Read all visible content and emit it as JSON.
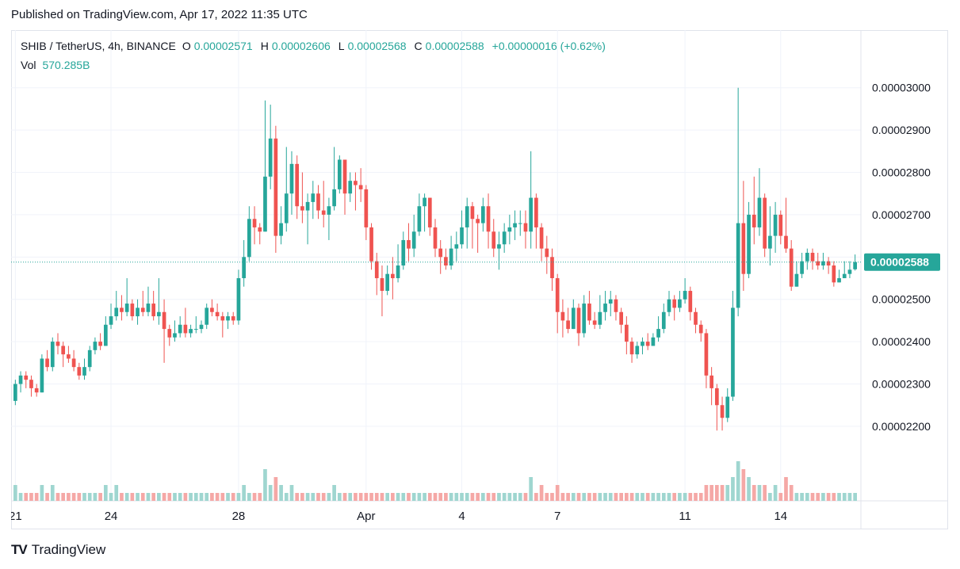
{
  "published": "Published on TradingView.com, Apr 17, 2022 11:35 UTC",
  "legend": {
    "symbol": "SHIB / TetherUS, 4h, BINANCE",
    "open_label": "O",
    "open": "0.00002571",
    "high_label": "H",
    "high": "0.00002606",
    "low_label": "L",
    "low": "0.00002568",
    "close_label": "C",
    "close": "0.00002588",
    "change": "+0.00000016 (+0.62%)"
  },
  "volume": {
    "label": "Vol",
    "value": "570.285B"
  },
  "brand": {
    "name": "TradingView",
    "logo": "TV"
  },
  "colors": {
    "up": "#26a69a",
    "down": "#ef5350",
    "up_vol": "#9fd6d0",
    "down_vol": "#f5a8a6",
    "grid": "#f0f3fa",
    "last": "#26a69a"
  },
  "chart_data": {
    "type": "candlestick",
    "symbol": "SHIB / TetherUS",
    "interval": "4h",
    "exchange": "BINANCE",
    "y_ticks": [
      "0.00002200",
      "0.00002300",
      "0.00002400",
      "0.00002500",
      "0.00002600",
      "0.00002700",
      "0.00002800",
      "0.00002900",
      "0.00003000"
    ],
    "y_tick_values": [
      2.2,
      2.3,
      2.4,
      2.5,
      2.6,
      2.7,
      2.8,
      2.9,
      3.0
    ],
    "y_unit": "1e-5 USDT",
    "ylim": [
      2.11,
      3.05
    ],
    "last_price_label": "0.00002588",
    "last_price": 2.588,
    "x_ticks": [
      {
        "label": "21",
        "index": 0
      },
      {
        "label": "24",
        "index": 18
      },
      {
        "label": "28",
        "index": 42
      },
      {
        "label": "Apr",
        "index": 66
      },
      {
        "label": "4",
        "index": 84
      },
      {
        "label": "7",
        "index": 102
      },
      {
        "label": "11",
        "index": 126
      },
      {
        "label": "14",
        "index": 144
      }
    ],
    "candles": [
      [
        2.26,
        2.3,
        2.31,
        2.25,
        2
      ],
      [
        2.3,
        2.32,
        2.33,
        2.28,
        1
      ],
      [
        2.32,
        2.31,
        2.33,
        2.29,
        1
      ],
      [
        2.31,
        2.29,
        2.32,
        2.27,
        1
      ],
      [
        2.29,
        2.28,
        2.3,
        2.27,
        1
      ],
      [
        2.28,
        2.36,
        2.37,
        2.28,
        2
      ],
      [
        2.36,
        2.34,
        2.38,
        2.33,
        1
      ],
      [
        2.34,
        2.4,
        2.41,
        2.33,
        2
      ],
      [
        2.4,
        2.39,
        2.42,
        2.37,
        1
      ],
      [
        2.39,
        2.37,
        2.4,
        2.34,
        1
      ],
      [
        2.37,
        2.36,
        2.39,
        2.35,
        1
      ],
      [
        2.36,
        2.34,
        2.38,
        2.33,
        1
      ],
      [
        2.34,
        2.32,
        2.35,
        2.31,
        1
      ],
      [
        2.32,
        2.34,
        2.36,
        2.31,
        1
      ],
      [
        2.34,
        2.38,
        2.39,
        2.33,
        1
      ],
      [
        2.38,
        2.4,
        2.41,
        2.37,
        1
      ],
      [
        2.4,
        2.39,
        2.42,
        2.38,
        1
      ],
      [
        2.39,
        2.44,
        2.46,
        2.39,
        2
      ],
      [
        2.44,
        2.46,
        2.49,
        2.43,
        1
      ],
      [
        2.46,
        2.48,
        2.52,
        2.45,
        2
      ],
      [
        2.48,
        2.47,
        2.51,
        2.45,
        1
      ],
      [
        2.47,
        2.49,
        2.55,
        2.46,
        1
      ],
      [
        2.49,
        2.46,
        2.5,
        2.45,
        1
      ],
      [
        2.46,
        2.48,
        2.5,
        2.44,
        1
      ],
      [
        2.48,
        2.47,
        2.52,
        2.46,
        1
      ],
      [
        2.47,
        2.49,
        2.53,
        2.46,
        1
      ],
      [
        2.49,
        2.46,
        2.52,
        2.45,
        1
      ],
      [
        2.46,
        2.47,
        2.55,
        2.44,
        1
      ],
      [
        2.47,
        2.43,
        2.5,
        2.35,
        1
      ],
      [
        2.43,
        2.41,
        2.44,
        2.39,
        1
      ],
      [
        2.41,
        2.42,
        2.45,
        2.4,
        1
      ],
      [
        2.42,
        2.44,
        2.46,
        2.41,
        1
      ],
      [
        2.44,
        2.42,
        2.48,
        2.41,
        1
      ],
      [
        2.42,
        2.43,
        2.44,
        2.41,
        1
      ],
      [
        2.43,
        2.43,
        2.46,
        2.42,
        1
      ],
      [
        2.43,
        2.44,
        2.45,
        2.42,
        1
      ],
      [
        2.44,
        2.48,
        2.49,
        2.43,
        1
      ],
      [
        2.48,
        2.47,
        2.5,
        2.46,
        1
      ],
      [
        2.47,
        2.46,
        2.49,
        2.45,
        1
      ],
      [
        2.46,
        2.45,
        2.47,
        2.41,
        1
      ],
      [
        2.45,
        2.46,
        2.47,
        2.43,
        1
      ],
      [
        2.46,
        2.45,
        2.47,
        2.44,
        1
      ],
      [
        2.45,
        2.55,
        2.57,
        2.44,
        1
      ],
      [
        2.55,
        2.6,
        2.64,
        2.53,
        2
      ],
      [
        2.6,
        2.69,
        2.72,
        2.59,
        1
      ],
      [
        2.69,
        2.67,
        2.72,
        2.63,
        1
      ],
      [
        2.67,
        2.66,
        2.68,
        2.63,
        1
      ],
      [
        2.66,
        2.79,
        2.97,
        2.66,
        4
      ],
      [
        2.79,
        2.88,
        2.96,
        2.76,
        2
      ],
      [
        2.88,
        2.65,
        2.91,
        2.61,
        3
      ],
      [
        2.65,
        2.68,
        2.72,
        2.63,
        2
      ],
      [
        2.68,
        2.75,
        2.86,
        2.66,
        1
      ],
      [
        2.75,
        2.82,
        2.85,
        2.7,
        2
      ],
      [
        2.82,
        2.72,
        2.84,
        2.69,
        1
      ],
      [
        2.72,
        2.71,
        2.8,
        2.68,
        1
      ],
      [
        2.71,
        2.73,
        2.75,
        2.63,
        1
      ],
      [
        2.73,
        2.75,
        2.78,
        2.69,
        1
      ],
      [
        2.75,
        2.71,
        2.77,
        2.69,
        1
      ],
      [
        2.71,
        2.7,
        2.78,
        2.67,
        1
      ],
      [
        2.7,
        2.72,
        2.74,
        2.64,
        1
      ],
      [
        2.72,
        2.76,
        2.86,
        2.71,
        2
      ],
      [
        2.76,
        2.83,
        2.84,
        2.75,
        1
      ],
      [
        2.83,
        2.75,
        2.83,
        2.7,
        1
      ],
      [
        2.75,
        2.78,
        2.8,
        2.73,
        1
      ],
      [
        2.78,
        2.77,
        2.8,
        2.71,
        1
      ],
      [
        2.77,
        2.76,
        2.81,
        2.73,
        1
      ],
      [
        2.76,
        2.67,
        2.77,
        2.64,
        1
      ],
      [
        2.67,
        2.59,
        2.68,
        2.57,
        1
      ],
      [
        2.59,
        2.55,
        2.61,
        2.51,
        1
      ],
      [
        2.55,
        2.52,
        2.58,
        2.46,
        1
      ],
      [
        2.52,
        2.56,
        2.58,
        2.51,
        1
      ],
      [
        2.56,
        2.55,
        2.6,
        2.5,
        1
      ],
      [
        2.55,
        2.58,
        2.63,
        2.54,
        1
      ],
      [
        2.58,
        2.64,
        2.66,
        2.57,
        1
      ],
      [
        2.64,
        2.62,
        2.68,
        2.59,
        1
      ],
      [
        2.62,
        2.66,
        2.7,
        2.6,
        1
      ],
      [
        2.66,
        2.72,
        2.75,
        2.65,
        1
      ],
      [
        2.72,
        2.74,
        2.75,
        2.66,
        1
      ],
      [
        2.74,
        2.67,
        2.74,
        2.65,
        1
      ],
      [
        2.67,
        2.62,
        2.69,
        2.6,
        1
      ],
      [
        2.62,
        2.6,
        2.64,
        2.56,
        1
      ],
      [
        2.6,
        2.58,
        2.62,
        2.57,
        1
      ],
      [
        2.58,
        2.62,
        2.65,
        2.57,
        1
      ],
      [
        2.62,
        2.63,
        2.66,
        2.59,
        1
      ],
      [
        2.63,
        2.67,
        2.71,
        2.62,
        1
      ],
      [
        2.67,
        2.72,
        2.74,
        2.62,
        1
      ],
      [
        2.72,
        2.69,
        2.73,
        2.62,
        1
      ],
      [
        2.69,
        2.68,
        2.7,
        2.61,
        1
      ],
      [
        2.68,
        2.72,
        2.74,
        2.66,
        1
      ],
      [
        2.72,
        2.66,
        2.75,
        2.62,
        1
      ],
      [
        2.66,
        2.62,
        2.69,
        2.6,
        1
      ],
      [
        2.62,
        2.63,
        2.66,
        2.57,
        1
      ],
      [
        2.63,
        2.66,
        2.68,
        2.61,
        1
      ],
      [
        2.66,
        2.67,
        2.7,
        2.63,
        1
      ],
      [
        2.67,
        2.68,
        2.71,
        2.64,
        1
      ],
      [
        2.68,
        2.68,
        2.71,
        2.65,
        1
      ],
      [
        2.68,
        2.66,
        2.71,
        2.62,
        1
      ],
      [
        2.66,
        2.74,
        2.85,
        2.62,
        3
      ],
      [
        2.74,
        2.67,
        2.75,
        2.62,
        1
      ],
      [
        2.67,
        2.62,
        2.68,
        2.59,
        2
      ],
      [
        2.62,
        2.6,
        2.65,
        2.56,
        1
      ],
      [
        2.6,
        2.55,
        2.62,
        2.52,
        1
      ],
      [
        2.55,
        2.47,
        2.56,
        2.42,
        2
      ],
      [
        2.47,
        2.45,
        2.5,
        2.41,
        1
      ],
      [
        2.45,
        2.43,
        2.48,
        2.42,
        1
      ],
      [
        2.43,
        2.48,
        2.5,
        2.43,
        1
      ],
      [
        2.48,
        2.42,
        2.49,
        2.39,
        1
      ],
      [
        2.42,
        2.49,
        2.51,
        2.41,
        1
      ],
      [
        2.49,
        2.45,
        2.52,
        2.44,
        1
      ],
      [
        2.45,
        2.44,
        2.47,
        2.43,
        1
      ],
      [
        2.44,
        2.47,
        2.51,
        2.43,
        1
      ],
      [
        2.47,
        2.49,
        2.52,
        2.45,
        1
      ],
      [
        2.49,
        2.5,
        2.52,
        2.46,
        1
      ],
      [
        2.5,
        2.47,
        2.51,
        2.45,
        1
      ],
      [
        2.47,
        2.44,
        2.48,
        2.42,
        1
      ],
      [
        2.44,
        2.4,
        2.46,
        2.37,
        1
      ],
      [
        2.4,
        2.37,
        2.41,
        2.35,
        1
      ],
      [
        2.37,
        2.39,
        2.4,
        2.36,
        1
      ],
      [
        2.39,
        2.4,
        2.41,
        2.37,
        1
      ],
      [
        2.4,
        2.39,
        2.42,
        2.38,
        1
      ],
      [
        2.39,
        2.41,
        2.42,
        2.39,
        1
      ],
      [
        2.41,
        2.43,
        2.46,
        2.4,
        1
      ],
      [
        2.43,
        2.47,
        2.49,
        2.42,
        1
      ],
      [
        2.47,
        2.5,
        2.52,
        2.46,
        1
      ],
      [
        2.5,
        2.48,
        2.51,
        2.45,
        1
      ],
      [
        2.48,
        2.5,
        2.52,
        2.47,
        1
      ],
      [
        2.5,
        2.52,
        2.55,
        2.49,
        1
      ],
      [
        2.52,
        2.47,
        2.53,
        2.45,
        1
      ],
      [
        2.47,
        2.44,
        2.48,
        2.42,
        1
      ],
      [
        2.44,
        2.42,
        2.45,
        2.4,
        1
      ],
      [
        2.42,
        2.32,
        2.43,
        2.29,
        2
      ],
      [
        2.32,
        2.29,
        2.34,
        2.25,
        2
      ],
      [
        2.29,
        2.25,
        2.3,
        2.19,
        2
      ],
      [
        2.25,
        2.22,
        2.27,
        2.19,
        2
      ],
      [
        2.22,
        2.27,
        2.29,
        2.21,
        2
      ],
      [
        2.27,
        2.48,
        2.52,
        2.26,
        3
      ],
      [
        2.48,
        2.68,
        3.0,
        2.46,
        5
      ],
      [
        2.68,
        2.56,
        2.78,
        2.52,
        4
      ],
      [
        2.56,
        2.7,
        2.73,
        2.55,
        3
      ],
      [
        2.7,
        2.67,
        2.79,
        2.63,
        2
      ],
      [
        2.67,
        2.74,
        2.81,
        2.65,
        2
      ],
      [
        2.74,
        2.62,
        2.75,
        2.6,
        2
      ],
      [
        2.62,
        2.65,
        2.72,
        2.58,
        1
      ],
      [
        2.65,
        2.7,
        2.73,
        2.61,
        2
      ],
      [
        2.7,
        2.65,
        2.71,
        2.63,
        1
      ],
      [
        2.65,
        2.62,
        2.74,
        2.61,
        3
      ],
      [
        2.62,
        2.53,
        2.64,
        2.52,
        2
      ],
      [
        2.53,
        2.56,
        2.59,
        2.53,
        1
      ],
      [
        2.56,
        2.59,
        2.61,
        2.55,
        1
      ],
      [
        2.59,
        2.61,
        2.62,
        2.57,
        1
      ],
      [
        2.61,
        2.59,
        2.62,
        2.57,
        1
      ],
      [
        2.59,
        2.58,
        2.61,
        2.57,
        1
      ],
      [
        2.58,
        2.59,
        2.61,
        2.57,
        1
      ],
      [
        2.59,
        2.58,
        2.6,
        2.56,
        1
      ],
      [
        2.58,
        2.54,
        2.59,
        2.53,
        1
      ],
      [
        2.54,
        2.55,
        2.57,
        2.54,
        1
      ],
      [
        2.55,
        2.56,
        2.59,
        2.55,
        1
      ],
      [
        2.56,
        2.57,
        2.59,
        2.55,
        1
      ],
      [
        2.571,
        2.588,
        2.606,
        2.568,
        1
      ]
    ]
  }
}
